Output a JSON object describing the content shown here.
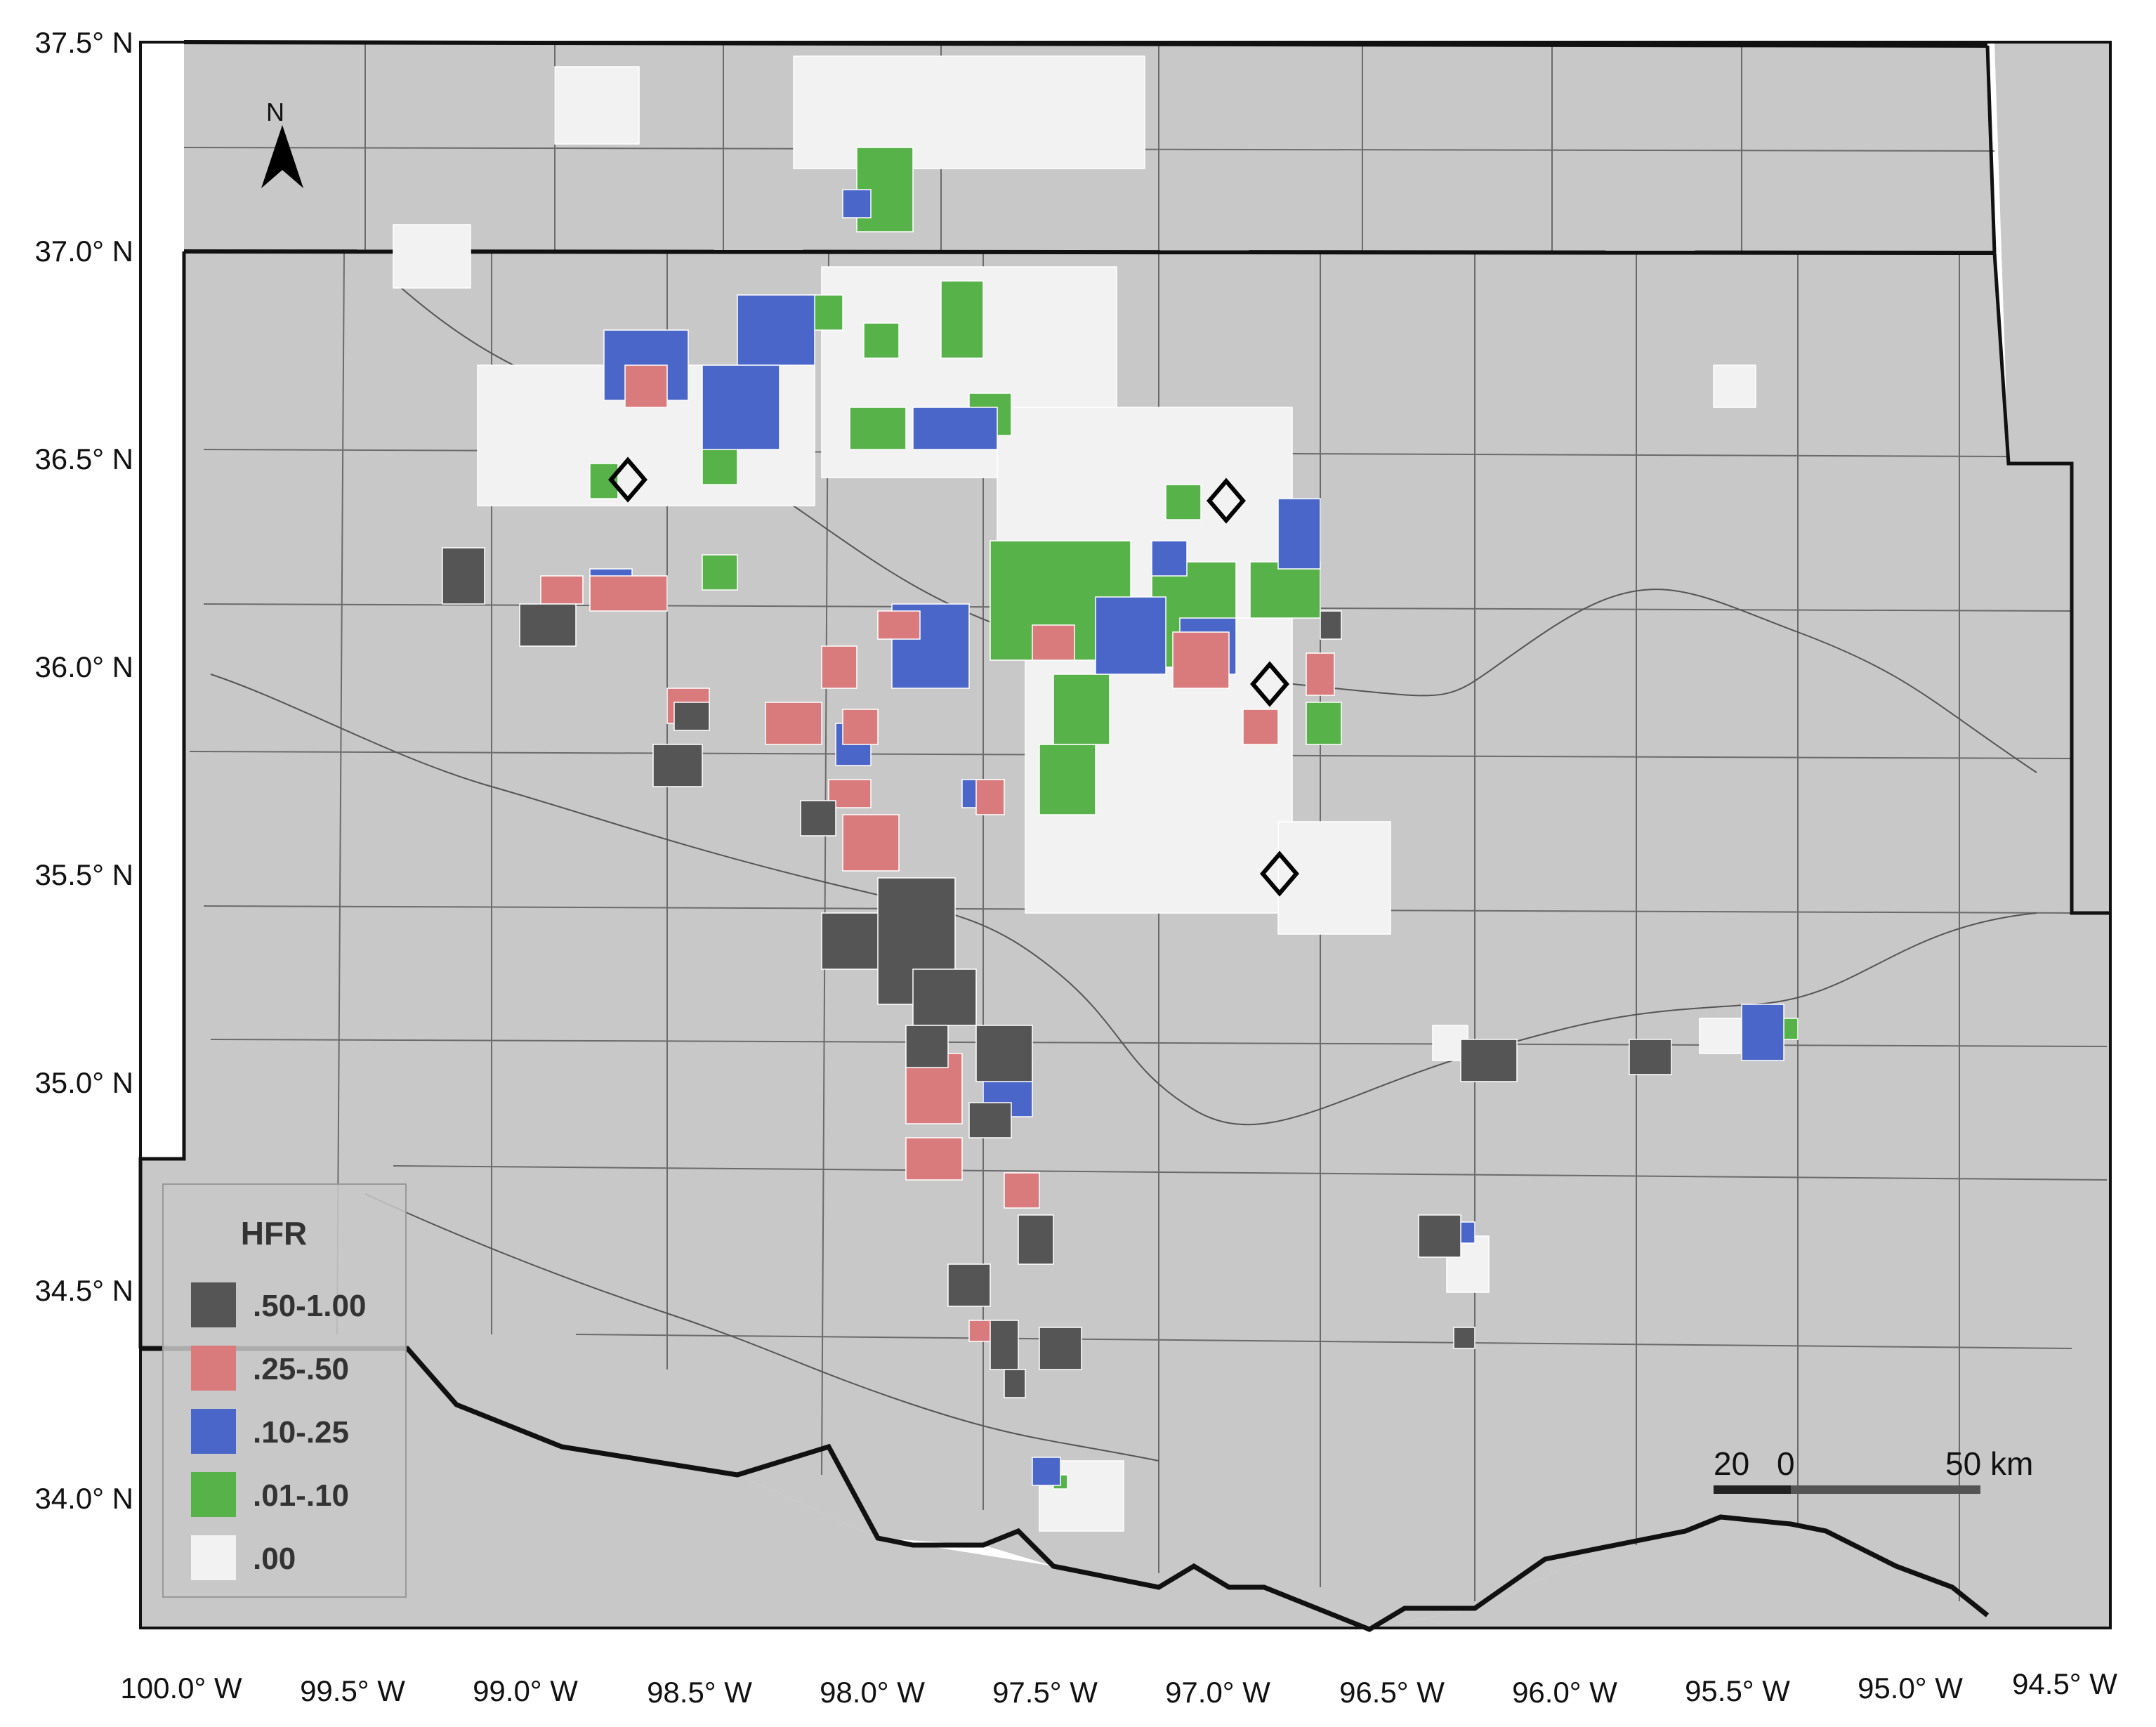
{
  "map": {
    "lat_labels": [
      "37.5° N",
      "37.0° N",
      "36.5° N",
      "36.0° N",
      "35.5° N",
      "35.0° N",
      "34.5° N",
      "34.0° N"
    ],
    "lon_labels": [
      "100.0° W",
      "99.5° W",
      "99.0° W",
      "98.5° W",
      "98.0° W",
      "97.5° W",
      "97.0° W",
      "96.5° W",
      "96.0° W",
      "95.5° W",
      "95.0° W",
      "94.5° W"
    ],
    "north_arrow_label": "N"
  },
  "legend": {
    "title": "HFR",
    "items": [
      {
        "label": ".50-1.00",
        "color": "#555555"
      },
      {
        "label": ".25-.50",
        "color": "#d97a7c"
      },
      {
        "label": ".10-.25",
        "color": "#4a66c8"
      },
      {
        "label": ".01-.10",
        "color": "#58b24a"
      },
      {
        "label": ".00",
        "color": "#f2f2f2"
      }
    ]
  },
  "scale_bar": {
    "left_label": "20",
    "zero_label": "0",
    "right_label": "50 km"
  },
  "colors": {
    "land": "#c8c8c8",
    "border": "#111111",
    "county_line": "#6b6b6b"
  }
}
